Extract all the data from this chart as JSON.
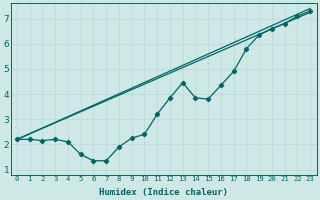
{
  "xlabel": "Humidex (Indice chaleur)",
  "ylabel": "",
  "background_color": "#cde8e5",
  "grid_color": "#b8d8d4",
  "line_color": "#006666",
  "xlim": [
    -0.5,
    23.5
  ],
  "ylim": [
    0.8,
    7.6
  ],
  "xticks": [
    0,
    1,
    2,
    3,
    4,
    5,
    6,
    7,
    8,
    9,
    10,
    11,
    12,
    13,
    14,
    15,
    16,
    17,
    18,
    19,
    20,
    21,
    22,
    23
  ],
  "yticks": [
    1,
    2,
    3,
    4,
    5,
    6,
    7
  ],
  "x": [
    0,
    1,
    2,
    3,
    4,
    5,
    6,
    7,
    8,
    9,
    10,
    11,
    12,
    13,
    14,
    15,
    16,
    17,
    18,
    19,
    20,
    21,
    22,
    23
  ],
  "y_data": [
    2.2,
    2.2,
    2.15,
    2.2,
    2.1,
    1.6,
    1.35,
    1.35,
    1.9,
    2.25,
    2.4,
    3.2,
    3.85,
    4.45,
    3.85,
    3.8,
    4.35,
    4.9,
    5.8,
    6.35,
    6.6,
    6.8,
    7.1,
    7.3
  ],
  "line1_start": 2.2,
  "line1_end": 7.4,
  "line2_start": 2.2,
  "line2_end": 7.25,
  "x_start": 0,
  "x_end": 23
}
